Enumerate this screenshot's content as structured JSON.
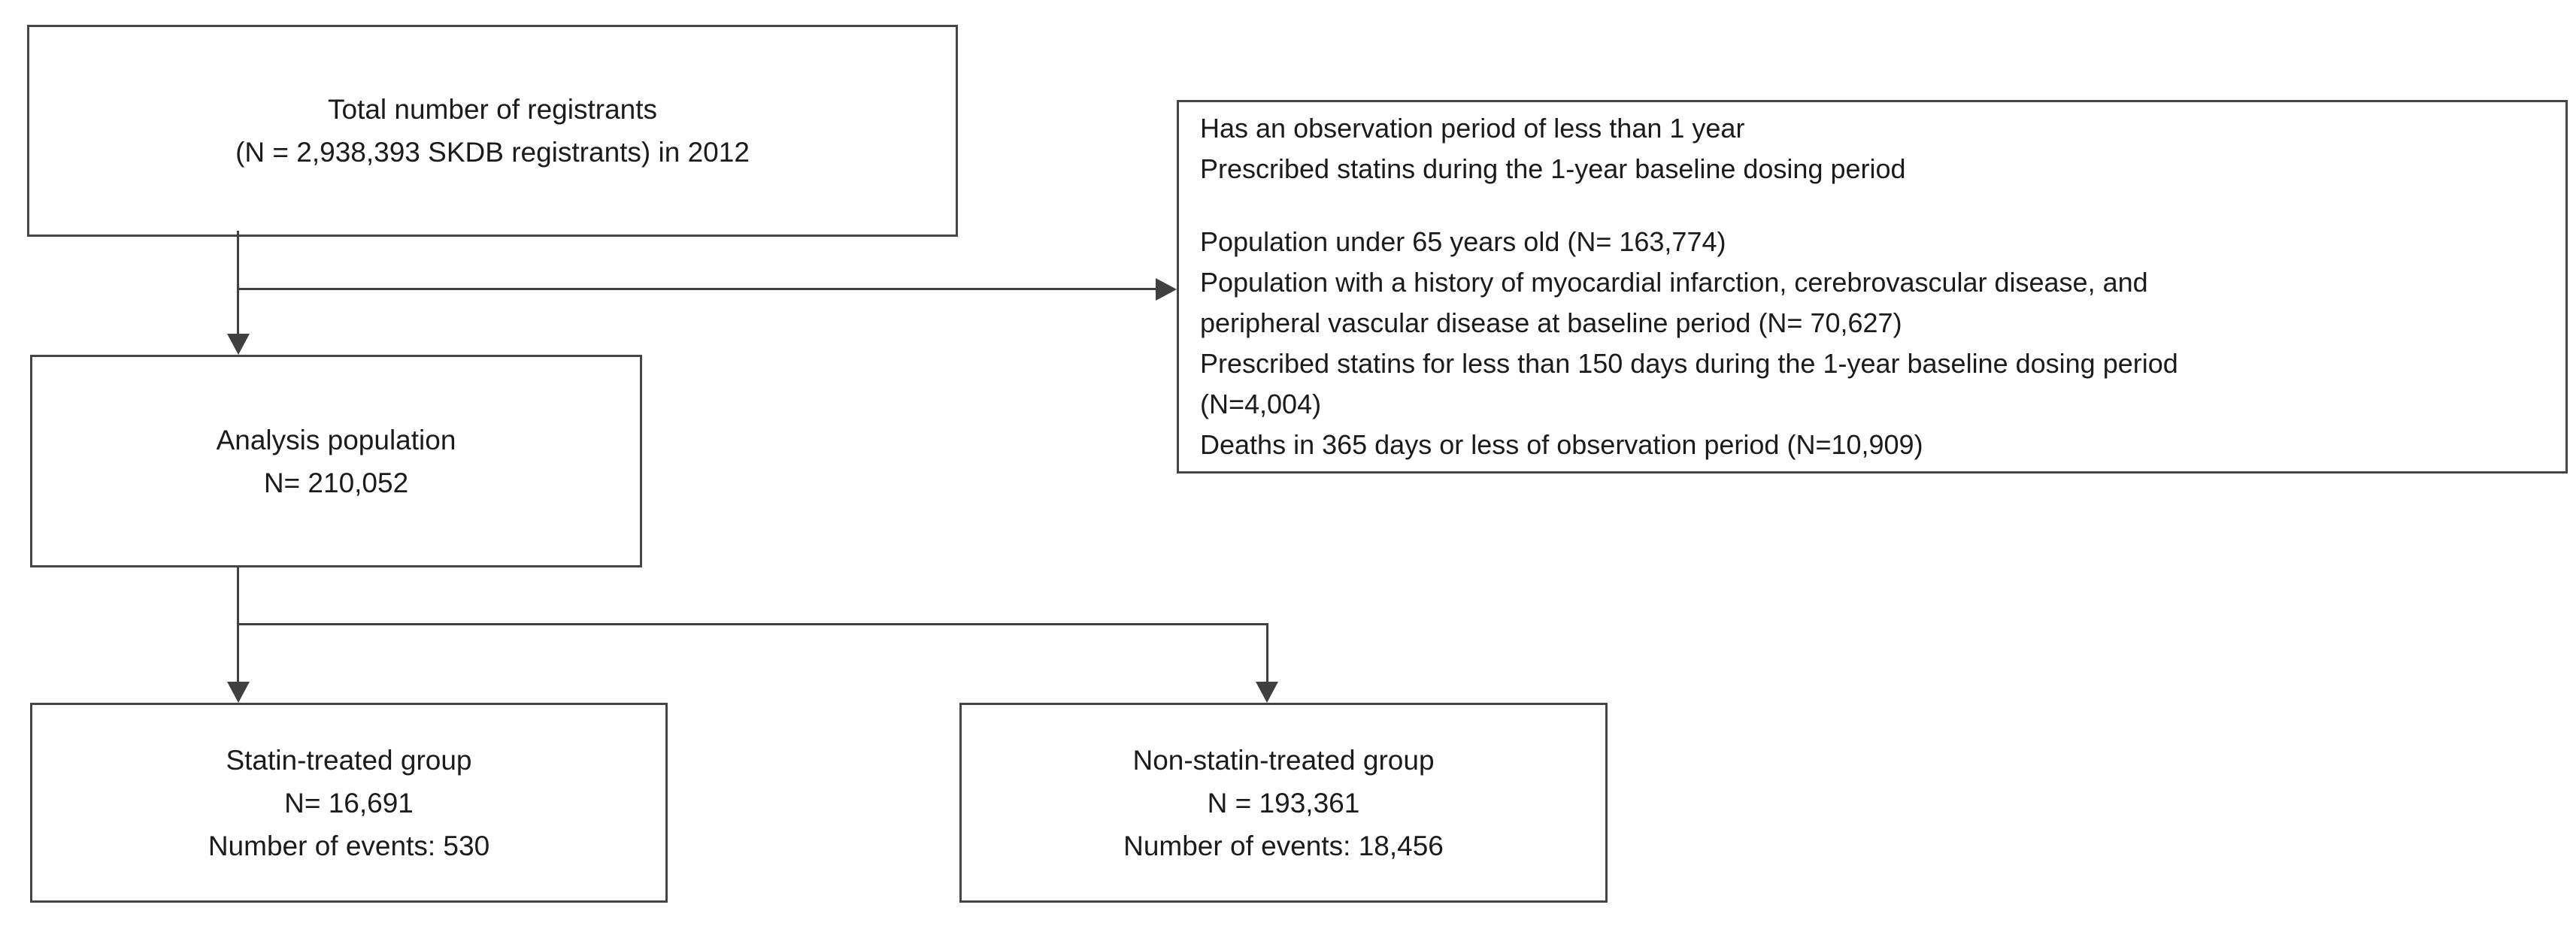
{
  "figure": {
    "type": "study-flow-diagram",
    "background_color": "#ffffff",
    "line_color": "#404040",
    "border_color": "#454545",
    "text_color": "#1b1b1b"
  },
  "boxes": {
    "total_registrants": {
      "lines": [
        "Total number of registrants",
        "(N = 2,938,393 SKDB registrants) in 2012"
      ]
    },
    "exclusion": {
      "lines": [
        "Has an observation period of less than 1 year",
        "Prescribed statins during the 1-year baseline dosing period",
        "",
        "Population under 65 years old (N= 163,774)",
        "Population with a history of myocardial infarction, cerebrovascular disease, and",
        "peripheral vascular disease at baseline period (N= 70,627)",
        "Prescribed statins for less than 150 days during the 1-year baseline dosing period",
        "(N=4,004)",
        "Deaths in 365 days or less of observation period (N=10,909)"
      ]
    },
    "analysis_population": {
      "lines": [
        "Analysis population",
        "N= 210,052"
      ]
    },
    "statin_group": {
      "lines": [
        "Statin-treated group",
        "N= 16,691",
        "Number of events: 530"
      ]
    },
    "non_statin_group": {
      "lines": [
        "Non-statin-treated group",
        "N = 193,361",
        "Number of events: 18,456"
      ]
    }
  }
}
